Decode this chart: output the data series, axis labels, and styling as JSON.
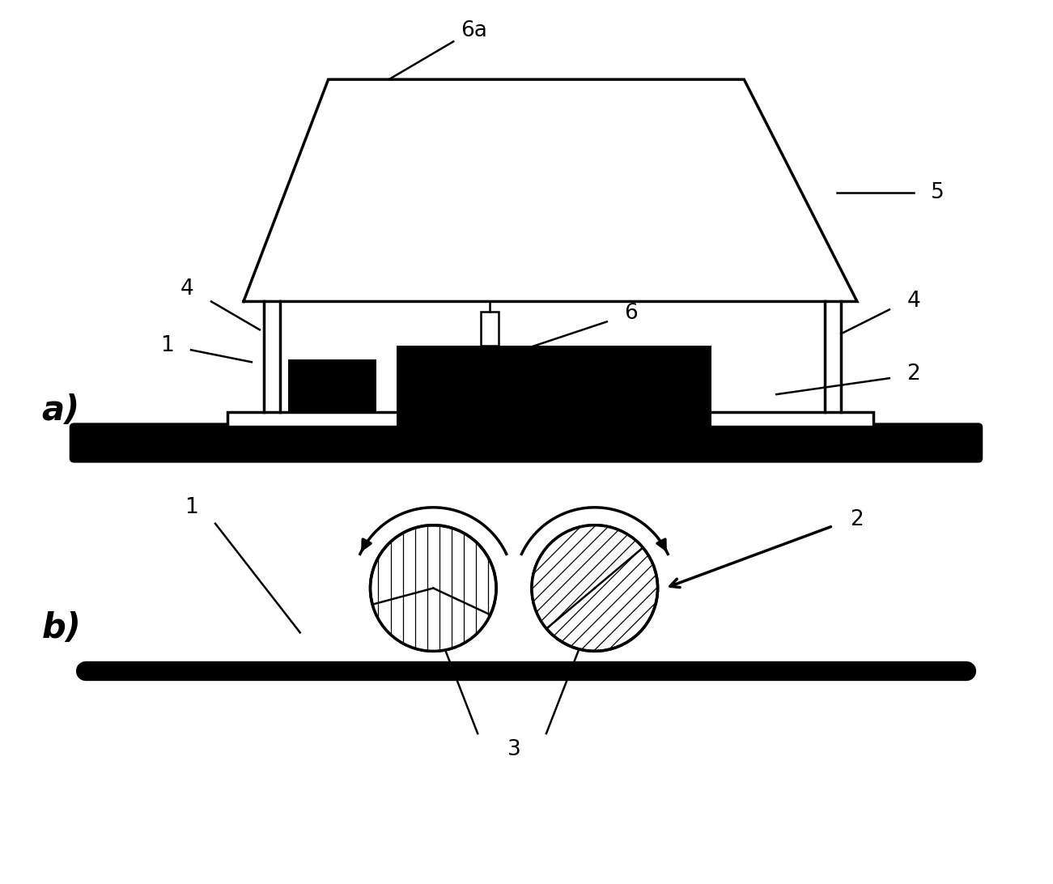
{
  "bg_color": "#ffffff",
  "line_color": "#000000",
  "label_a": "a)",
  "label_b": "b)",
  "label_1": "1",
  "label_2": "2",
  "label_3": "3",
  "label_4": "4",
  "label_5": "5",
  "label_6": "6",
  "label_6a": "6a",
  "figsize": [
    13.01,
    10.92
  ],
  "dpi": 100
}
